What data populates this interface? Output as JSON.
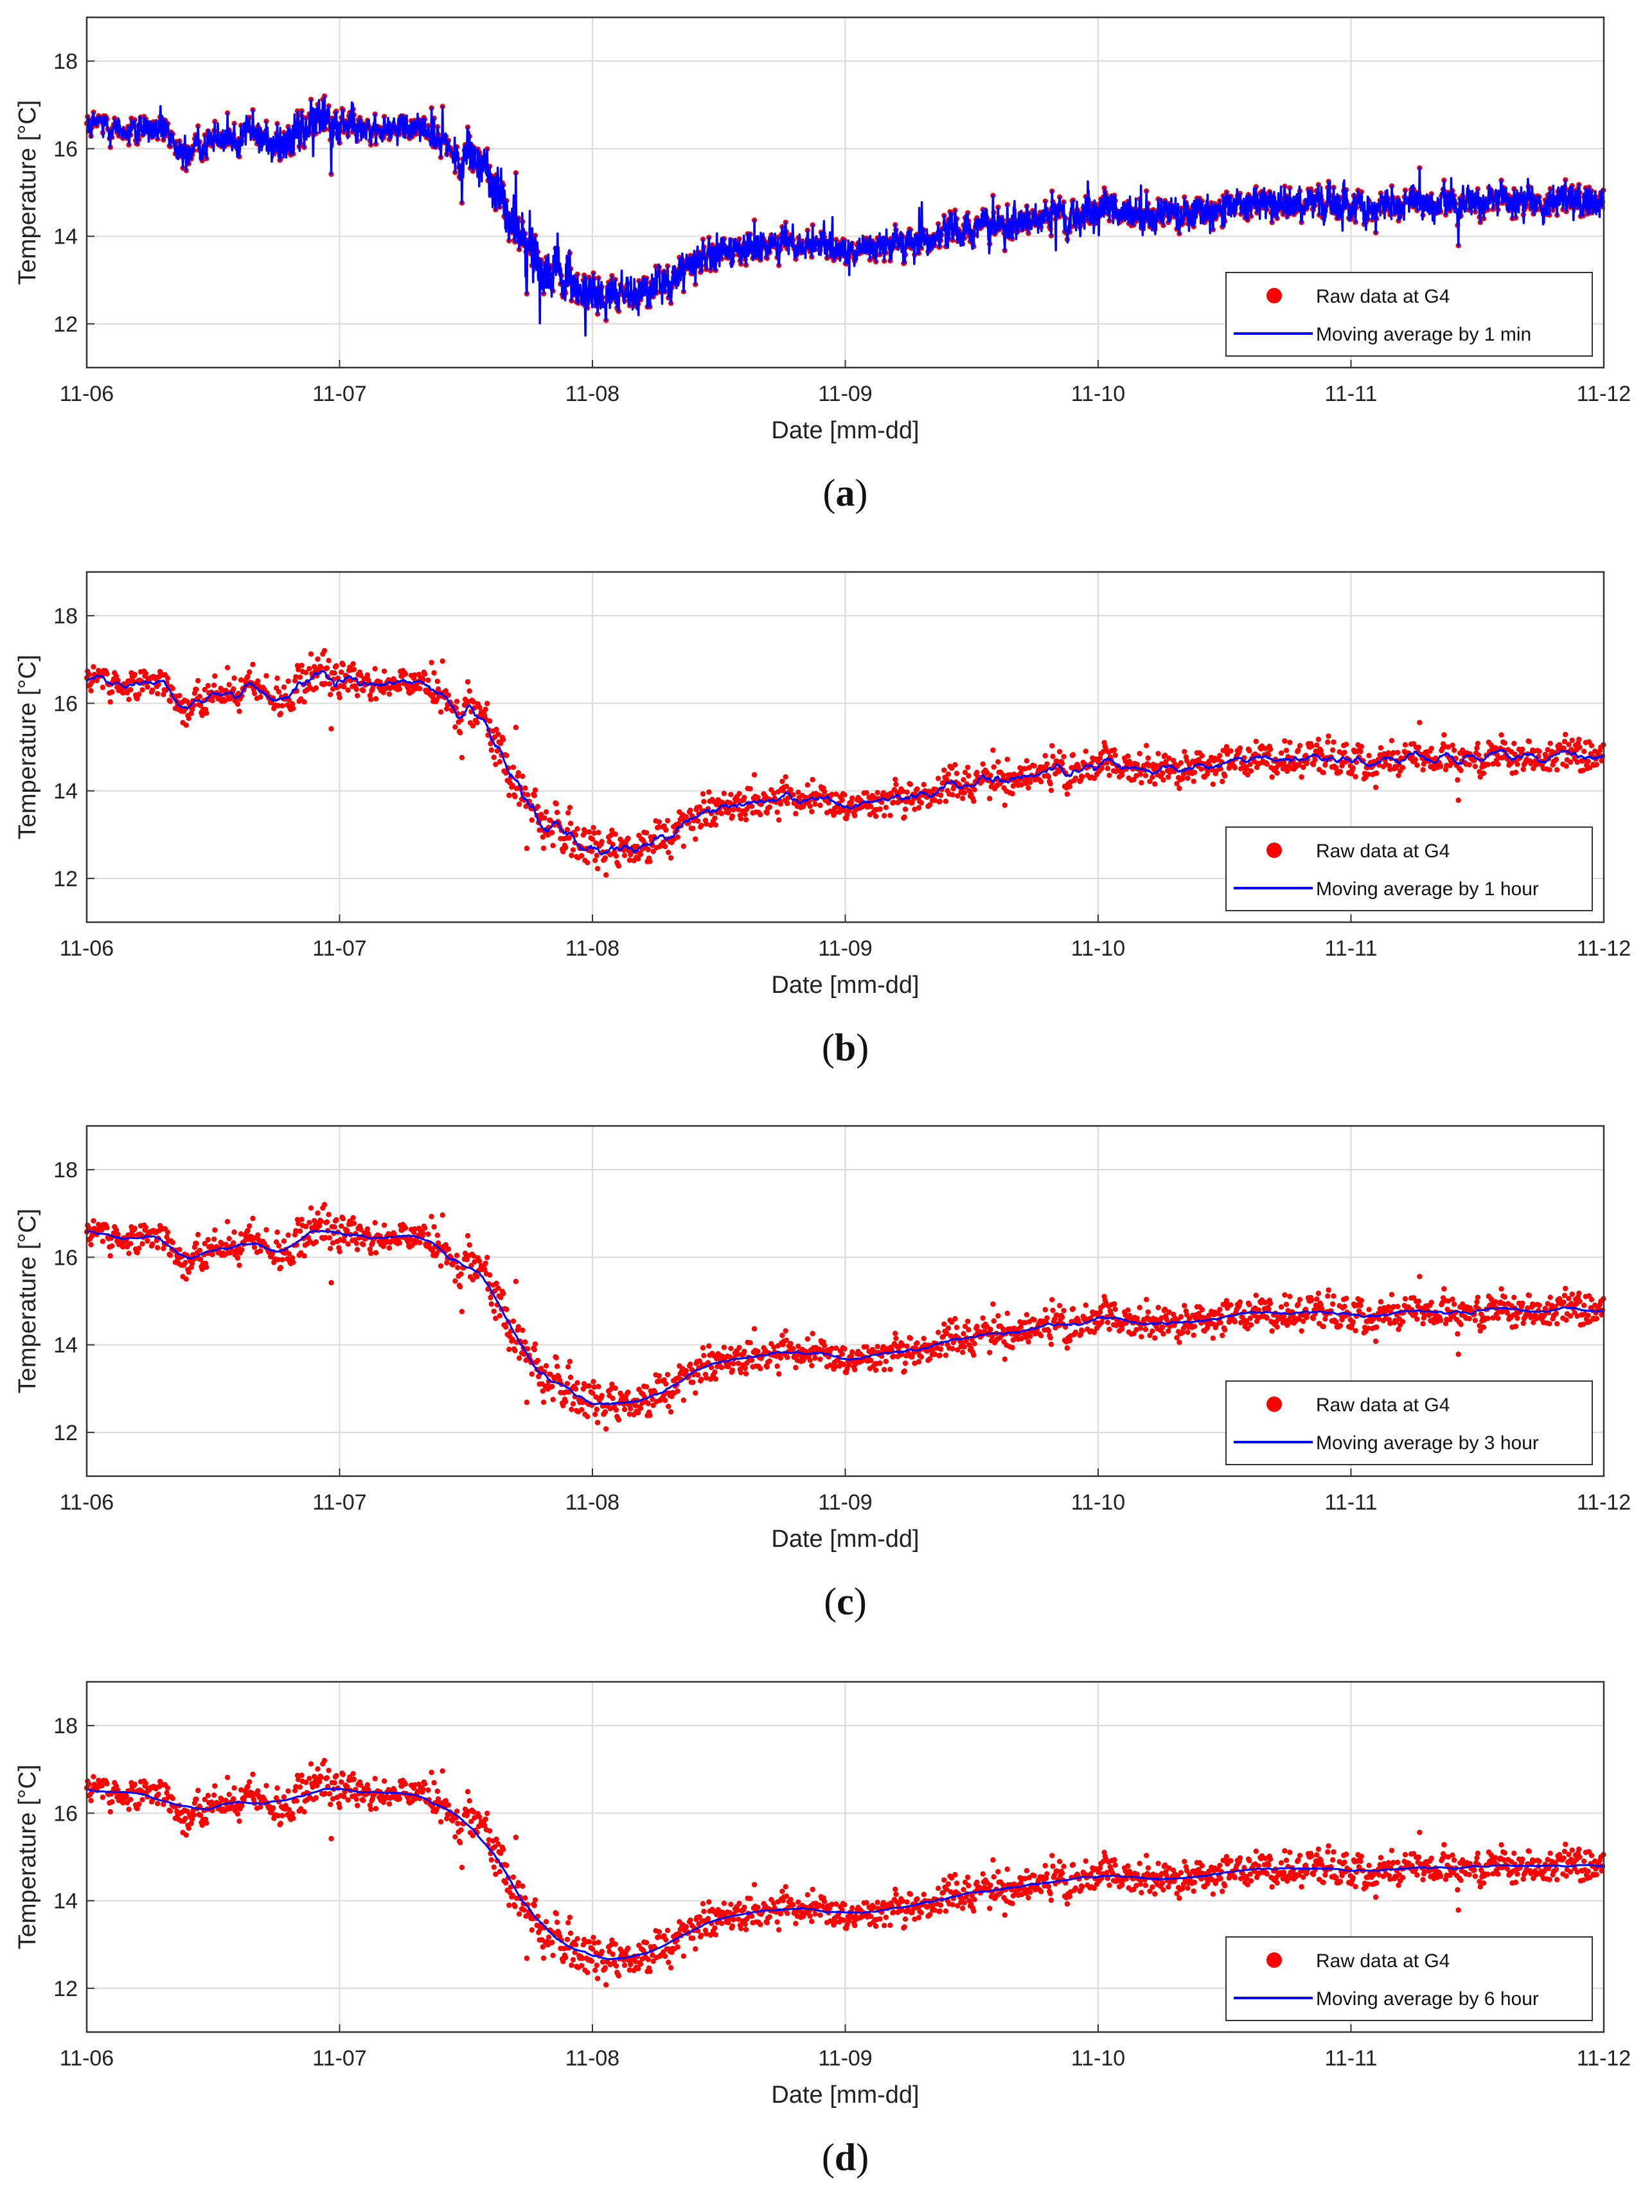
{
  "colors": {
    "raw": "#ff0000",
    "average": "#0000ff",
    "grid": "#dadada",
    "axis": "#333333"
  },
  "chart_data": [
    {
      "type": "scatter",
      "panel": "a",
      "caption": "a",
      "xlabel": "Date [mm-dd]",
      "ylabel": "Temperature [°C]",
      "x_ticks": [
        "11-06",
        "11-07",
        "11-08",
        "11-09",
        "11-10",
        "11-11",
        "11-12"
      ],
      "xlim": [
        0,
        6
      ],
      "ylim": [
        11,
        19
      ],
      "y_ticks": [
        12,
        14,
        16,
        18
      ],
      "grid": true,
      "legend_position": "bottom-right",
      "series": [
        {
          "name": "Raw data at G4",
          "style": "points"
        },
        {
          "name": "Moving average by 1 min",
          "style": "line",
          "window_hours": 0.0167
        }
      ]
    },
    {
      "type": "scatter",
      "panel": "b",
      "caption": "b",
      "xlabel": "Date [mm-dd]",
      "ylabel": "Temperature [°C]",
      "x_ticks": [
        "11-06",
        "11-07",
        "11-08",
        "11-09",
        "11-10",
        "11-11",
        "11-12"
      ],
      "xlim": [
        0,
        6
      ],
      "ylim": [
        11,
        19
      ],
      "y_ticks": [
        12,
        14,
        16,
        18
      ],
      "grid": true,
      "legend_position": "bottom-right",
      "series": [
        {
          "name": "Raw data at G4",
          "style": "points"
        },
        {
          "name": "Moving average by 1 hour",
          "style": "line",
          "window_hours": 1
        }
      ]
    },
    {
      "type": "scatter",
      "panel": "c",
      "caption": "c",
      "xlabel": "Date [mm-dd]",
      "ylabel": "Temperature [°C]",
      "x_ticks": [
        "11-06",
        "11-07",
        "11-08",
        "11-09",
        "11-10",
        "11-11",
        "11-12"
      ],
      "xlim": [
        0,
        6
      ],
      "ylim": [
        11,
        19
      ],
      "y_ticks": [
        12,
        14,
        16,
        18
      ],
      "grid": true,
      "legend_position": "bottom-right",
      "series": [
        {
          "name": "Raw data at G4",
          "style": "points"
        },
        {
          "name": "Moving average by 3 hour",
          "style": "line",
          "window_hours": 3
        }
      ]
    },
    {
      "type": "scatter",
      "panel": "d",
      "caption": "d",
      "xlabel": "Date [mm-dd]",
      "ylabel": "Temperature [°C]",
      "x_ticks": [
        "11-06",
        "11-07",
        "11-08",
        "11-09",
        "11-10",
        "11-11",
        "11-12"
      ],
      "xlim": [
        0,
        6
      ],
      "ylim": [
        11,
        19
      ],
      "y_ticks": [
        12,
        14,
        16,
        18
      ],
      "grid": true,
      "legend_position": "bottom-right",
      "series": [
        {
          "name": "Raw data at G4",
          "style": "points"
        },
        {
          "name": "Moving average by 6 hour",
          "style": "line",
          "window_hours": 6
        }
      ]
    }
  ],
  "underlying_trend": {
    "days": [
      0,
      0.15,
      0.3,
      0.38,
      0.5,
      0.65,
      0.8,
      0.95,
      1.1,
      1.3,
      1.45,
      1.55,
      1.65,
      1.75,
      1.85,
      2.0,
      2.2,
      2.35,
      2.45,
      2.6,
      2.75,
      3.0,
      3.25,
      3.5,
      3.75,
      4.0,
      4.25,
      4.5,
      4.75,
      5.0,
      5.25,
      5.5,
      5.75,
      6.0
    ],
    "temps": [
      16.6,
      16.4,
      16.5,
      15.9,
      16.2,
      16.4,
      16.1,
      16.8,
      16.4,
      16.5,
      16.0,
      15.8,
      14.8,
      13.5,
      13.2,
      12.6,
      12.7,
      13.2,
      13.5,
      13.6,
      13.9,
      13.7,
      13.9,
      14.2,
      14.4,
      14.6,
      14.5,
      14.6,
      14.8,
      14.7,
      14.7,
      14.8,
      14.8,
      14.8
    ],
    "noise_amplitude": [
      0.35,
      0.35,
      0.4,
      0.45,
      0.4,
      0.45,
      0.55,
      0.65,
      0.4,
      0.35,
      0.45,
      0.6,
      0.8,
      0.9,
      0.75,
      0.6,
      0.5,
      0.55,
      0.5,
      0.45,
      0.45,
      0.4,
      0.45,
      0.5,
      0.5,
      0.5,
      0.45,
      0.5,
      0.5,
      0.5,
      0.45,
      0.45,
      0.45,
      0.5
    ]
  }
}
